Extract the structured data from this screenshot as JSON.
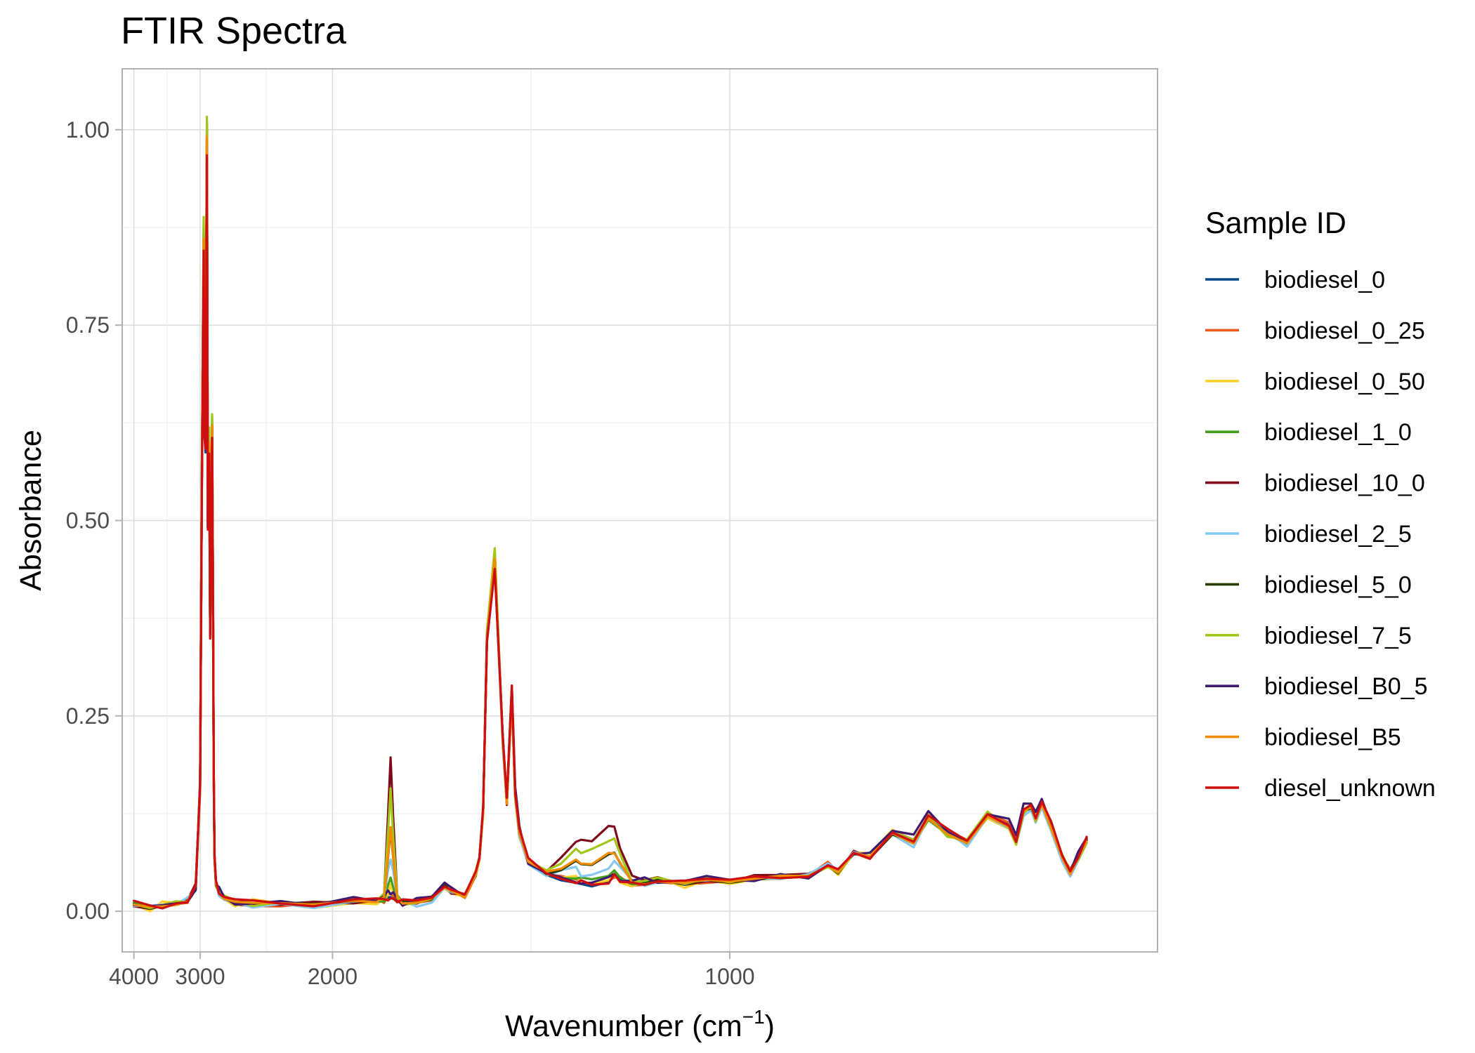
{
  "chart_data": {
    "type": "line",
    "title": "FTIR Spectra",
    "xlabel": "Wavenumber",
    "xlabel_unit_base": "cm",
    "xlabel_unit_exp": "−1",
    "ylabel": "Absorbance",
    "x_scale": "reciprocal",
    "x_reversed": true,
    "xlim": [
      4250,
      650
    ],
    "ylim": [
      -0.052,
      1.078
    ],
    "x_ticks": [
      {
        "value": 4000,
        "label": "4000"
      },
      {
        "value": 3000,
        "label": "3000"
      },
      {
        "value": 2000,
        "label": "2000"
      },
      {
        "value": 1000,
        "label": "1000"
      }
    ],
    "y_ticks": [
      {
        "value": 0,
        "label": "0.00"
      },
      {
        "value": 0.25,
        "label": "0.25"
      },
      {
        "value": 0.5,
        "label": "0.50"
      },
      {
        "value": 0.75,
        "label": "0.75"
      },
      {
        "value": 1,
        "label": "1.00"
      }
    ],
    "grid": true,
    "legend": {
      "title": "Sample ID",
      "position": "right"
    },
    "common_x": [
      4000,
      3700,
      3500,
      3300,
      3150,
      3050,
      3000,
      2980,
      2960,
      2950,
      2940,
      2925,
      2915,
      2900,
      2890,
      2880,
      2870,
      2860,
      2853,
      2845,
      2830,
      2800,
      2750,
      2650,
      2500,
      2300,
      2100,
      1900,
      1800,
      1770,
      1755,
      1745,
      1735,
      1720,
      1700,
      1650,
      1600,
      1560,
      1540,
      1500,
      1470,
      1460,
      1450,
      1440,
      1420,
      1400,
      1390,
      1385,
      1378,
      1370,
      1360,
      1340,
      1300,
      1270,
      1240,
      1230,
      1210,
      1180,
      1170,
      1160,
      1140,
      1120,
      1100,
      1060,
      1030,
      1000,
      970,
      940,
      910,
      890,
      880,
      865,
      850,
      830,
      812,
      800,
      785,
      770,
      755,
      740,
      735,
      730,
      725,
      722,
      718,
      712,
      705,
      700,
      695,
      690
    ],
    "base_y": [
      0.01,
      0.005,
      0.007,
      0.01,
      0.014,
      0.032,
      0.16,
      0.55,
      0.86,
      0.62,
      0.6,
      0.99,
      0.5,
      0.6,
      0.36,
      0.5,
      0.62,
      0.4,
      0.18,
      0.07,
      0.035,
      0.025,
      0.018,
      0.012,
      0.01,
      0.01,
      0.01,
      0.012,
      0.013,
      0.013,
      0.014,
      0.014,
      0.014,
      0.013,
      0.012,
      0.012,
      0.016,
      0.033,
      0.025,
      0.02,
      0.048,
      0.07,
      0.13,
      0.35,
      0.45,
      0.22,
      0.14,
      0.2,
      0.28,
      0.15,
      0.1,
      0.065,
      0.048,
      0.04,
      0.035,
      0.035,
      0.032,
      0.036,
      0.042,
      0.038,
      0.036,
      0.037,
      0.04,
      0.036,
      0.04,
      0.038,
      0.043,
      0.045,
      0.045,
      0.06,
      0.05,
      0.075,
      0.07,
      0.1,
      0.09,
      0.12,
      0.1,
      0.09,
      0.125,
      0.11,
      0.09,
      0.13,
      0.135,
      0.12,
      0.14,
      0.11,
      0.07,
      0.05,
      0.07,
      0.09
    ],
    "ester_bumps": [
      {
        "x": 1745,
        "width": 10,
        "kind": "ester"
      },
      {
        "x": 1240,
        "width": 25,
        "kind": "ester"
      },
      {
        "x": 1196,
        "width": 12,
        "kind": "ester"
      },
      {
        "x": 1170,
        "width": 14,
        "kind": "ester"
      }
    ],
    "series": [
      {
        "name": "biodiesel_0",
        "color": "#00468b",
        "ester": 0.005,
        "scale": 1.0,
        "peak_scale": 0.98
      },
      {
        "name": "biodiesel_0_25",
        "color": "#ed5a1e",
        "ester": 0.012,
        "scale": 1.0,
        "peak_scale": 1.0
      },
      {
        "name": "biodiesel_0_50",
        "color": "#fdd12b",
        "ester": 0.018,
        "scale": 0.99,
        "peak_scale": 1.0
      },
      {
        "name": "biodiesel_1_0",
        "color": "#42a01b",
        "ester": 0.03,
        "scale": 0.98,
        "peak_scale": 1.02
      },
      {
        "name": "biodiesel_10_0",
        "color": "#7f0a1a",
        "ester": 0.18,
        "scale": 1.0,
        "peak_scale": 1.0
      },
      {
        "name": "biodiesel_2_5",
        "color": "#86c8f0",
        "ester": 0.055,
        "scale": 0.97,
        "peak_scale": 1.0
      },
      {
        "name": "biodiesel_5_0",
        "color": "#2a3d00",
        "ester": 0.09,
        "scale": 0.99,
        "peak_scale": 1.01
      },
      {
        "name": "biodiesel_7_5",
        "color": "#a2c617",
        "ester": 0.14,
        "scale": 0.99,
        "peak_scale": 1.03
      },
      {
        "name": "biodiesel_B0_5",
        "color": "#3f1a6f",
        "ester": 0.012,
        "scale": 1.03,
        "peak_scale": 0.99
      },
      {
        "name": "biodiesel_B5",
        "color": "#f48c00",
        "ester": 0.095,
        "scale": 0.98,
        "peak_scale": 1.0
      },
      {
        "name": "diesel_unknown",
        "color": "#cf0f0f",
        "ester": 0.004,
        "scale": 1.02,
        "peak_scale": 0.98
      }
    ]
  }
}
